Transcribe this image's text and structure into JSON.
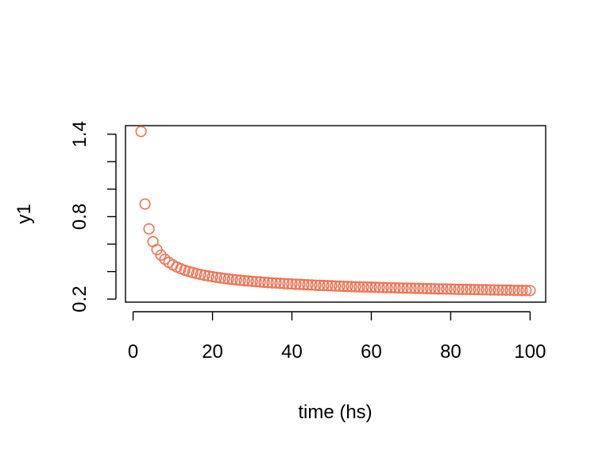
{
  "chart_data": {
    "type": "scatter",
    "title": "",
    "xlabel": "time (hs)",
    "ylabel": "y1",
    "xlim": [
      -1.92,
      103.92
    ],
    "ylim": [
      0.1776,
      1.4624
    ],
    "xticks": [
      0,
      20,
      40,
      60,
      80,
      100
    ],
    "xtick_labels": [
      "0",
      "20",
      "40",
      "60",
      "80",
      "100"
    ],
    "yticks": [
      0.2,
      0.4,
      0.6,
      0.8,
      1.0,
      1.2,
      1.4
    ],
    "ytick_labels": [
      "0.2",
      "",
      "",
      "0.8",
      "",
      "",
      "1.4"
    ],
    "grid": false,
    "legend": "none",
    "marker": "open-circle",
    "color": "#f07050",
    "x": [
      2,
      3,
      4,
      5,
      6,
      7,
      8,
      9,
      10,
      11,
      12,
      13,
      14,
      15,
      16,
      17,
      18,
      19,
      20,
      21,
      22,
      23,
      24,
      25,
      26,
      27,
      28,
      29,
      30,
      31,
      32,
      33,
      34,
      35,
      36,
      37,
      38,
      39,
      40,
      41,
      42,
      43,
      44,
      45,
      46,
      47,
      48,
      49,
      50,
      51,
      52,
      53,
      54,
      55,
      56,
      57,
      58,
      59,
      60,
      61,
      62,
      63,
      64,
      65,
      66,
      67,
      68,
      69,
      70,
      71,
      72,
      73,
      74,
      75,
      76,
      77,
      78,
      79,
      80,
      81,
      82,
      83,
      84,
      85,
      86,
      87,
      88,
      89,
      90,
      91,
      92,
      93,
      94,
      95,
      96,
      97,
      98,
      99,
      100
    ],
    "y": [
      1.42,
      0.892,
      0.711,
      0.618,
      0.56,
      0.52,
      0.49,
      0.467,
      0.449,
      0.434,
      0.421,
      0.41,
      0.401,
      0.393,
      0.385,
      0.379,
      0.373,
      0.368,
      0.363,
      0.358,
      0.354,
      0.35,
      0.347,
      0.343,
      0.34,
      0.337,
      0.334,
      0.332,
      0.329,
      0.327,
      0.325,
      0.322,
      0.32,
      0.318,
      0.317,
      0.315,
      0.313,
      0.311,
      0.31,
      0.308,
      0.307,
      0.305,
      0.304,
      0.303,
      0.301,
      0.3,
      0.299,
      0.298,
      0.297,
      0.295,
      0.294,
      0.293,
      0.292,
      0.291,
      0.29,
      0.289,
      0.288,
      0.288,
      0.287,
      0.286,
      0.285,
      0.284,
      0.283,
      0.283,
      0.282,
      0.281,
      0.28,
      0.28,
      0.279,
      0.278,
      0.278,
      0.277,
      0.276,
      0.276,
      0.275,
      0.274,
      0.274,
      0.273,
      0.273,
      0.272,
      0.271,
      0.271,
      0.27,
      0.27,
      0.269,
      0.269,
      0.268,
      0.268,
      0.267,
      0.267,
      0.266,
      0.266,
      0.265,
      0.265,
      0.264,
      0.264,
      0.263,
      0.263,
      0.262
    ]
  }
}
